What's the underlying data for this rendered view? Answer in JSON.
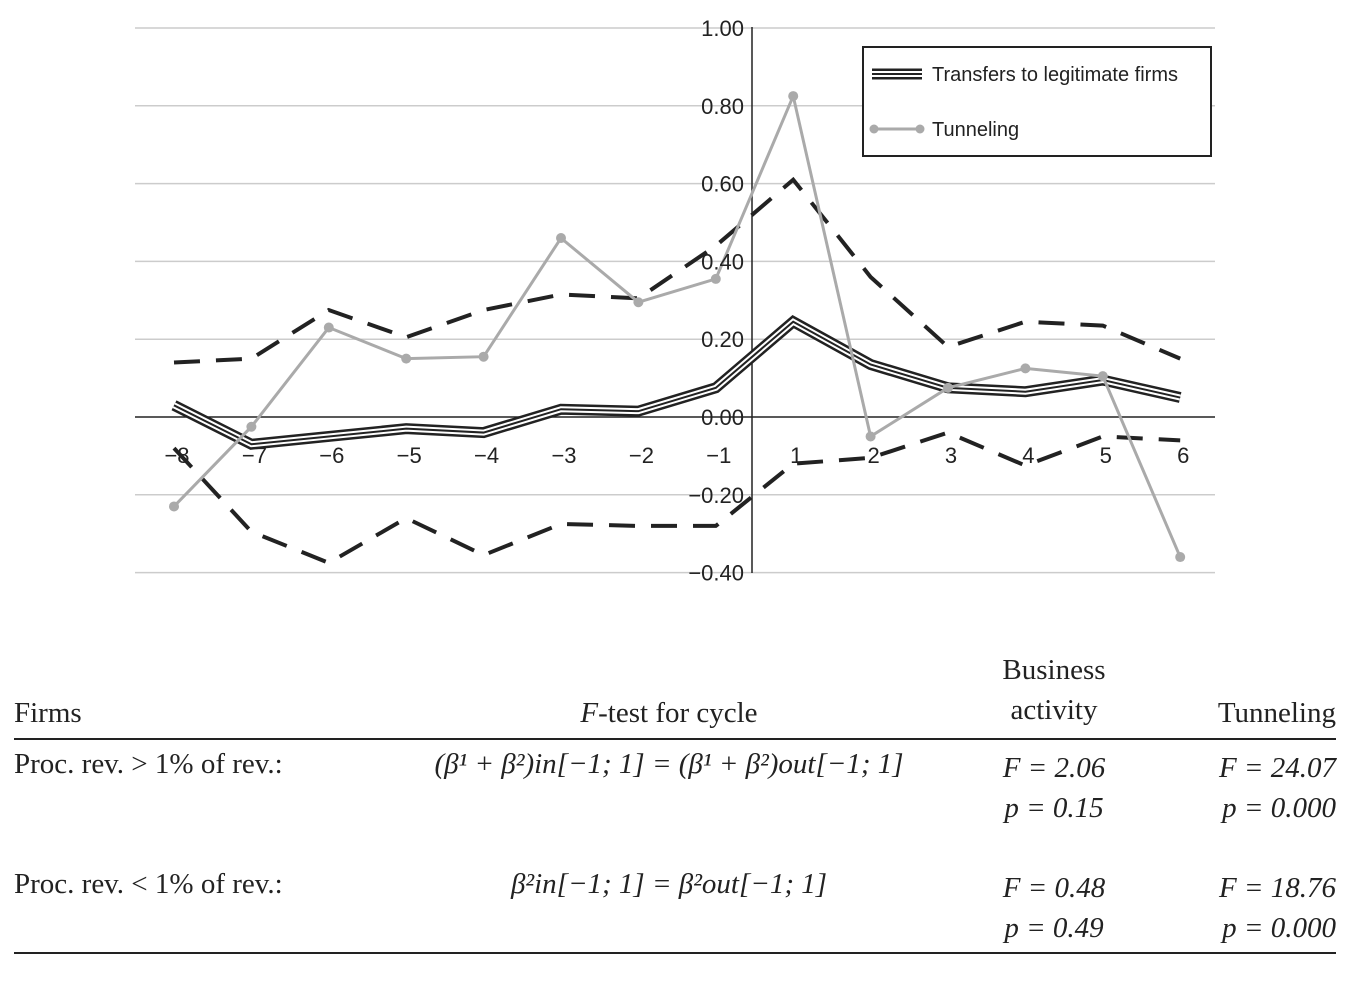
{
  "chart_data": {
    "type": "line",
    "x": [
      -8,
      -7,
      -6,
      -5,
      -4,
      -3,
      -2,
      -1,
      1,
      2,
      3,
      4,
      5,
      6
    ],
    "x_tick_labels": [
      "−8",
      "−7",
      "−6",
      "−5",
      "−4",
      "−3",
      "−2",
      "−1",
      "1",
      "2",
      "3",
      "4",
      "5",
      "6"
    ],
    "ylim": [
      -0.4,
      1.0
    ],
    "y_ticks": [
      1.0,
      0.8,
      0.6,
      0.4,
      0.2,
      0.0,
      -0.2,
      -0.4
    ],
    "y_tick_labels": [
      "1.00",
      "0.80",
      "0.60",
      "0.40",
      "0.20",
      "0.00",
      "−0.20",
      "−0.40"
    ],
    "grid": true,
    "legend_position": "top-right",
    "series": [
      {
        "name": "Transfers to legitimate firms",
        "color": "#222222",
        "style": "triple-line",
        "values": [
          0.03,
          -0.07,
          -0.05,
          -0.03,
          -0.04,
          0.02,
          0.015,
          0.075,
          0.245,
          0.135,
          0.075,
          0.065,
          0.095,
          0.05
        ]
      },
      {
        "name": "Tunneling",
        "color": "#aaaaaa",
        "style": "line-with-markers",
        "values": [
          -0.23,
          -0.025,
          0.23,
          0.15,
          0.155,
          0.46,
          0.295,
          0.355,
          0.825,
          -0.05,
          0.075,
          0.125,
          0.105,
          -0.36
        ]
      },
      {
        "color": "#222222",
        "style": "dashed",
        "values": [
          0.14,
          0.15,
          0.275,
          0.205,
          0.275,
          0.315,
          0.305,
          0.44,
          0.61,
          0.36,
          0.18,
          0.245,
          0.235,
          0.15
        ]
      },
      {
        "color": "#222222",
        "style": "dashed",
        "values": [
          -0.08,
          -0.295,
          -0.375,
          -0.26,
          -0.355,
          -0.275,
          -0.28,
          -0.28,
          -0.12,
          -0.105,
          -0.04,
          -0.125,
          -0.05,
          -0.06
        ]
      }
    ]
  },
  "table": {
    "headers": {
      "firms": "Firms",
      "test_italic": "F",
      "test_rest": "-test for cycle",
      "business_line1": "Business",
      "business_line2": "activity",
      "tunneling": "Tunneling"
    },
    "rows": [
      {
        "firms": "Proc. rev. > 1% of rev.:",
        "test": "(β¹ + β²)in[−1; 1] = (β¹ + β²)out[−1; 1]",
        "business_f": "F = 2.06",
        "business_p": "p = 0.15",
        "tunneling_f": "F = 24.07",
        "tunneling_p": "p = 0.000"
      },
      {
        "firms": "Proc. rev. < 1% of rev.:",
        "test": "β²in[−1; 1] = β²out[−1; 1]",
        "business_f": "F = 0.48",
        "business_p": "p = 0.49",
        "tunneling_f": "F = 18.76",
        "tunneling_p": "p = 0.000"
      }
    ]
  }
}
